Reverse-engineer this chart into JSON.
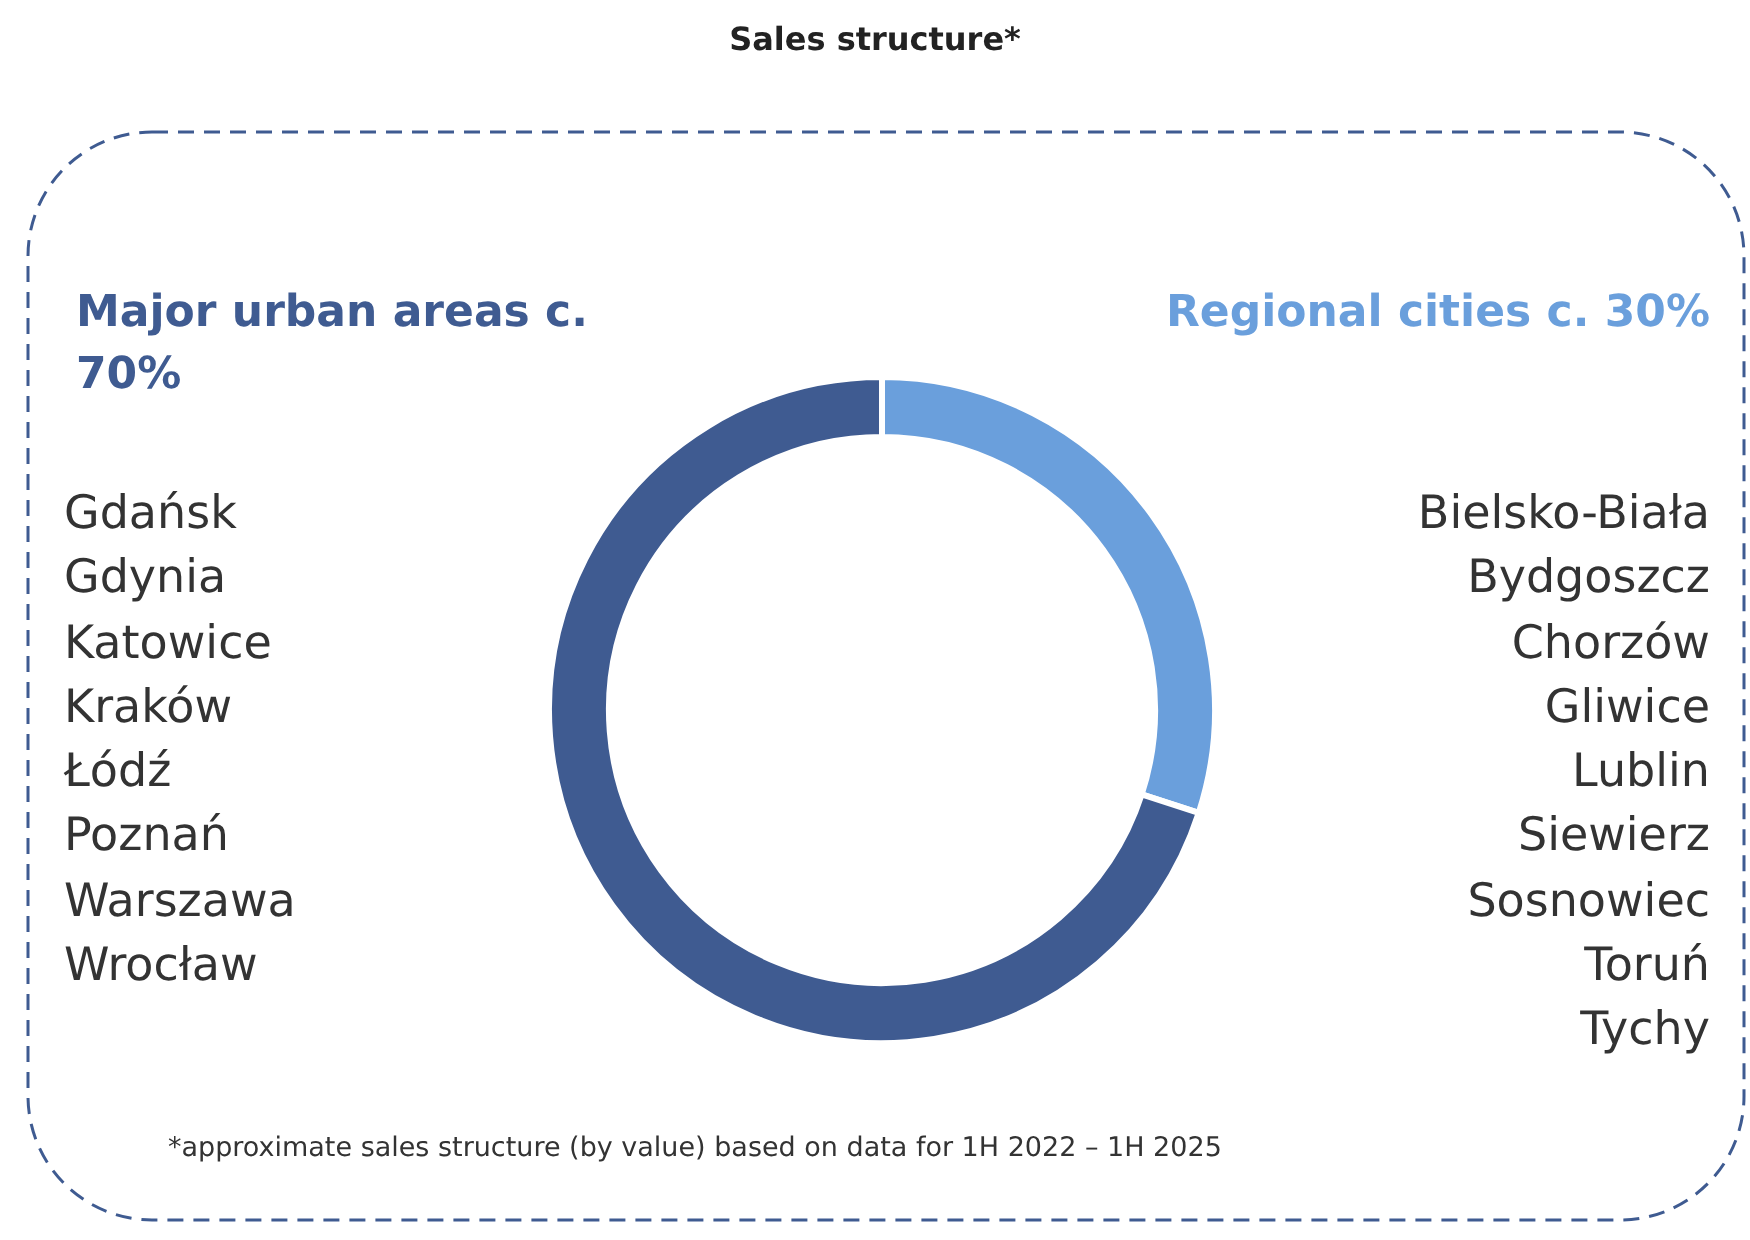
{
  "chart_data": {
    "type": "donut",
    "title": "Sales structure*",
    "categories": [
      "Regional cities c. 30%",
      "Major urban areas c. 70%"
    ],
    "values": [
      30,
      70
    ],
    "colors": [
      "#6a9fdc",
      "#3f5b91"
    ],
    "legend": false,
    "annotations": [
      "Gdańsk\nGdynia\nKatowice\nKraków\nŁódź\nPoznań\nWarszawa\nWrocław",
      "Bielsko-Biała\nBydgoszcz\nChorzów\nGliwice\nLublin\nSiewierz\nSosnowiec\nToruń\nTychy",
      "*approximate sales structure (by value) based on data for 1H 2022 – 1H 2025"
    ]
  }
}
